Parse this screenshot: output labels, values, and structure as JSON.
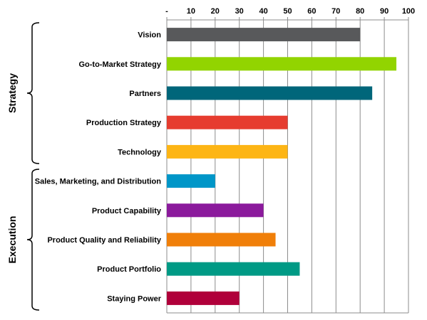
{
  "chart_data": {
    "type": "bar",
    "orientation": "horizontal",
    "xlim": [
      0,
      100
    ],
    "x_ticks": [
      "-",
      "10",
      "20",
      "30",
      "40",
      "50",
      "60",
      "70",
      "80",
      "90",
      "100"
    ],
    "x_axis_position": "top",
    "grid": true,
    "categories": [
      "Vision",
      "Go-to-Market Strategy",
      "Partners",
      "Production Strategy",
      "Technology",
      "Sales, Marketing, and Distribution",
      "Product Capability",
      "Product Quality and Reliability",
      "Product Portfolio",
      "Staying Power"
    ],
    "values": [
      80,
      95,
      85,
      50,
      50,
      20,
      40,
      45,
      55,
      30
    ],
    "colors": [
      "#58595b",
      "#92d400",
      "#00667a",
      "#e63c2f",
      "#fdb515",
      "#0096c8",
      "#8b1a9c",
      "#f07f09",
      "#009a85",
      "#b0003a"
    ],
    "groups": [
      {
        "label": "Strategy",
        "first": 0,
        "last": 4
      },
      {
        "label": "Execution",
        "first": 5,
        "last": 9
      }
    ]
  }
}
